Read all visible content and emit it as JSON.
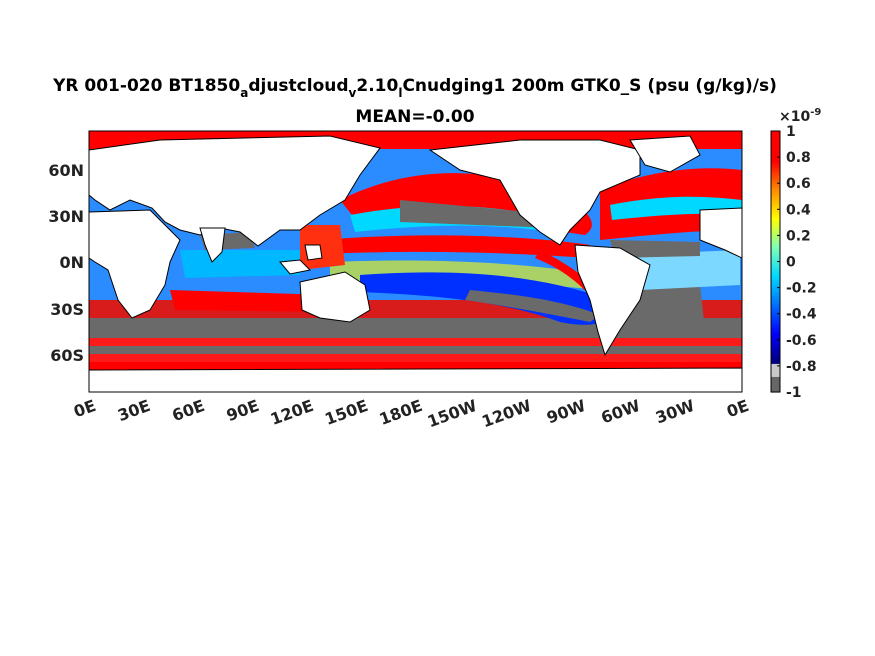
{
  "title": {
    "part1": "YR 001-020 BT1850",
    "sub1": "a",
    "part2": "djustcloud",
    "sub2": "v",
    "part3": "2.10",
    "sub3": "l",
    "part4": "Cnudging1 200m GTK0_S (psu (g/kg)/s)",
    "line2": "MEAN=-0.00"
  },
  "map": {
    "lon_ticks": [
      "0E",
      "30E",
      "60E",
      "90E",
      "120E",
      "150E",
      "180E",
      "150W",
      "120W",
      "90W",
      "60W",
      "30W",
      "0E"
    ],
    "lat_ticks": [
      "60N",
      "30N",
      "0N",
      "30S",
      "60S"
    ],
    "land_color": "#ffffff",
    "coast_color": "#000000"
  },
  "colorbar": {
    "exponent_base": "×10",
    "exponent_power": "-9",
    "tick_labels": [
      "1",
      "0.8",
      "0.6",
      "0.4",
      "0.2",
      "0",
      "-0.2",
      "-0.4",
      "-0.6",
      "-0.8",
      "-1"
    ],
    "range": [
      -1,
      1
    ],
    "stops": [
      "#666666",
      "#c8c8c8",
      "#00007f",
      "#0000ff",
      "#0070ff",
      "#00d8ff",
      "#7dffb8",
      "#ffff00",
      "#ff8c00",
      "#ff0000",
      "#ff0000"
    ]
  }
}
